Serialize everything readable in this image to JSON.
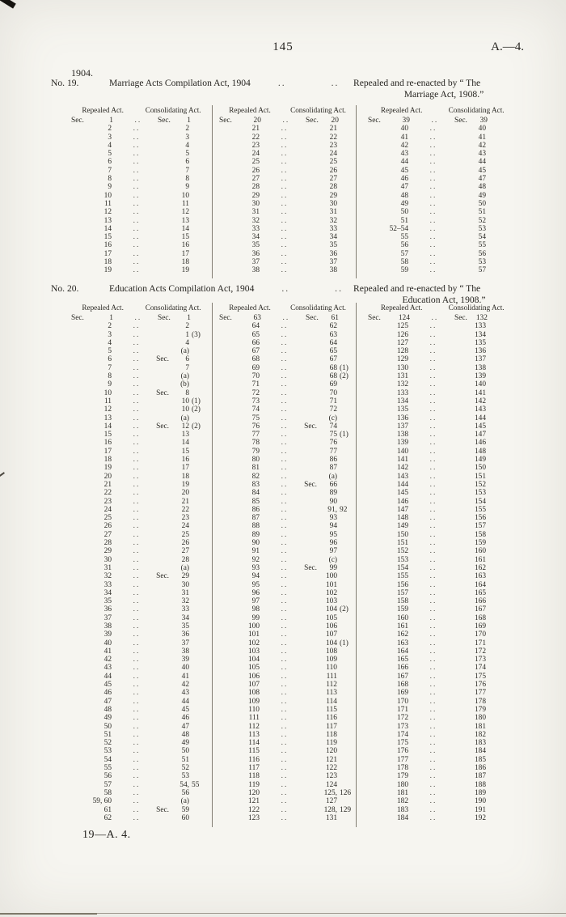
{
  "page": {
    "number": "145",
    "doc_ref": "A.—4.",
    "year_label": "1904.",
    "footer": "19—A. 4."
  },
  "table_headers": {
    "repealed": "Repealed Act.",
    "consolidating": "Consolidating Act."
  },
  "row_dots": "..",
  "acts": [
    {
      "no_label": "No. 19.",
      "title": "Marriage Acts Compilation Act, 1904",
      "dots": "..",
      "note_line1": "Repealed and re-enacted by “ The",
      "note_line2": "Marriage Act, 1908.”",
      "columns": [
        [
          [
            "Sec. 1",
            "Sec. 1"
          ],
          [
            "2",
            "2"
          ],
          [
            "3",
            "3"
          ],
          [
            "4",
            "4"
          ],
          [
            "5",
            "5"
          ],
          [
            "6",
            "6"
          ],
          [
            "7",
            "7"
          ],
          [
            "8",
            "8"
          ],
          [
            "9",
            "9"
          ],
          [
            "10",
            "10"
          ],
          [
            "11",
            "11"
          ],
          [
            "12",
            "12"
          ],
          [
            "13",
            "13"
          ],
          [
            "14",
            "14"
          ],
          [
            "15",
            "15"
          ],
          [
            "16",
            "16"
          ],
          [
            "17",
            "17"
          ],
          [
            "18",
            "18"
          ],
          [
            "19",
            "19"
          ]
        ],
        [
          [
            "Sec. 20",
            "Sec. 20"
          ],
          [
            "21",
            "21"
          ],
          [
            "22",
            "22"
          ],
          [
            "23",
            "23"
          ],
          [
            "24",
            "24"
          ],
          [
            "25",
            "25"
          ],
          [
            "26",
            "26"
          ],
          [
            "27",
            "27"
          ],
          [
            "28",
            "28"
          ],
          [
            "29",
            "29"
          ],
          [
            "30",
            "30"
          ],
          [
            "31",
            "31"
          ],
          [
            "32",
            "32"
          ],
          [
            "33",
            "33"
          ],
          [
            "34",
            "34"
          ],
          [
            "35",
            "35"
          ],
          [
            "36",
            "36"
          ],
          [
            "37",
            "37"
          ],
          [
            "38",
            "38"
          ]
        ],
        [
          [
            "Sec. 39",
            "Sec. 39"
          ],
          [
            "40",
            "40"
          ],
          [
            "41",
            "41"
          ],
          [
            "42",
            "42"
          ],
          [
            "43",
            "43"
          ],
          [
            "44",
            "44"
          ],
          [
            "45",
            "45"
          ],
          [
            "46",
            "47"
          ],
          [
            "47",
            "48"
          ],
          [
            "48",
            "49"
          ],
          [
            "49",
            "50"
          ],
          [
            "50",
            "51"
          ],
          [
            "51",
            "52"
          ],
          [
            "52–54",
            "53"
          ],
          [
            "55",
            "54"
          ],
          [
            "56",
            "55"
          ],
          [
            "57",
            "56"
          ],
          [
            "58",
            "53"
          ],
          [
            "59",
            "57"
          ]
        ]
      ]
    },
    {
      "no_label": "No. 20.",
      "title": "Education Acts Compilation Act, 1904",
      "dots": "..",
      "note_line1": "Repealed and re-enacted by “ The",
      "note_line2": "Education Act, 1908.”",
      "columns": [
        [
          [
            "Sec. 1",
            "Sec. 1"
          ],
          [
            "2",
            "2"
          ],
          [
            "3",
            "1 (3)"
          ],
          [
            "4",
            "4"
          ],
          [
            "5",
            "(a)"
          ],
          [
            "6",
            "Sec. 6"
          ],
          [
            "7",
            "7"
          ],
          [
            "8",
            "(a)"
          ],
          [
            "9",
            "(b)"
          ],
          [
            "10",
            "Sec. 8"
          ],
          [
            "11",
            "10 (1)"
          ],
          [
            "12",
            "10 (2)"
          ],
          [
            "13",
            "(a)"
          ],
          [
            "14",
            "Sec. 12 (2)"
          ],
          [
            "15",
            "13"
          ],
          [
            "16",
            "14"
          ],
          [
            "17",
            "15"
          ],
          [
            "18",
            "16"
          ],
          [
            "19",
            "17"
          ],
          [
            "20",
            "18"
          ],
          [
            "21",
            "19"
          ],
          [
            "22",
            "20"
          ],
          [
            "23",
            "21"
          ],
          [
            "24",
            "22"
          ],
          [
            "25",
            "23"
          ],
          [
            "26",
            "24"
          ],
          [
            "27",
            "25"
          ],
          [
            "28",
            "26"
          ],
          [
            "29",
            "27"
          ],
          [
            "30",
            "28"
          ],
          [
            "31",
            "(a)"
          ],
          [
            "32",
            "Sec. 29"
          ],
          [
            "33",
            "30"
          ],
          [
            "34",
            "31"
          ],
          [
            "35",
            "32"
          ],
          [
            "36",
            "33"
          ],
          [
            "37",
            "34"
          ],
          [
            "38",
            "35"
          ],
          [
            "39",
            "36"
          ],
          [
            "40",
            "37"
          ],
          [
            "41",
            "38"
          ],
          [
            "42",
            "39"
          ],
          [
            "43",
            "40"
          ],
          [
            "44",
            "41"
          ],
          [
            "45",
            "42"
          ],
          [
            "46",
            "43"
          ],
          [
            "47",
            "44"
          ],
          [
            "48",
            "45"
          ],
          [
            "49",
            "46"
          ],
          [
            "50",
            "47"
          ],
          [
            "51",
            "48"
          ],
          [
            "52",
            "49"
          ],
          [
            "53",
            "50"
          ],
          [
            "54",
            "51"
          ],
          [
            "55",
            "52"
          ],
          [
            "56",
            "53"
          ],
          [
            "57",
            "54, 55"
          ],
          [
            "58",
            "56"
          ],
          [
            "59, 60",
            "(a)"
          ],
          [
            "61",
            "Sec. 59"
          ],
          [
            "62",
            "60"
          ]
        ],
        [
          [
            "Sec. 63",
            "Sec. 61"
          ],
          [
            "64",
            "62"
          ],
          [
            "65",
            "63"
          ],
          [
            "66",
            "64"
          ],
          [
            "67",
            "65"
          ],
          [
            "68",
            "67"
          ],
          [
            "69",
            "68 (1)"
          ],
          [
            "70",
            "68 (2)"
          ],
          [
            "71",
            "69"
          ],
          [
            "72",
            "70"
          ],
          [
            "73",
            "71"
          ],
          [
            "74",
            "72"
          ],
          [
            "75",
            "(c)"
          ],
          [
            "76",
            "Sec. 74"
          ],
          [
            "77",
            "75 (1)"
          ],
          [
            "78",
            "76"
          ],
          [
            "79",
            "77"
          ],
          [
            "80",
            "86"
          ],
          [
            "81",
            "87"
          ],
          [
            "82",
            "(a)"
          ],
          [
            "83",
            "Sec. 66"
          ],
          [
            "84",
            "89"
          ],
          [
            "85",
            "90"
          ],
          [
            "86",
            "91, 92"
          ],
          [
            "87",
            "93"
          ],
          [
            "88",
            "94"
          ],
          [
            "89",
            "95"
          ],
          [
            "90",
            "96"
          ],
          [
            "91",
            "97"
          ],
          [
            "92",
            "(c)"
          ],
          [
            "93",
            "Sec. 99"
          ],
          [
            "94",
            "100"
          ],
          [
            "95",
            "101"
          ],
          [
            "96",
            "102"
          ],
          [
            "97",
            "103"
          ],
          [
            "98",
            "104 (2)"
          ],
          [
            "99",
            "105"
          ],
          [
            "100",
            "106"
          ],
          [
            "101",
            "107"
          ],
          [
            "102",
            "104 (1)"
          ],
          [
            "103",
            "108"
          ],
          [
            "104",
            "109"
          ],
          [
            "105",
            "110"
          ],
          [
            "106",
            "111"
          ],
          [
            "107",
            "112"
          ],
          [
            "108",
            "113"
          ],
          [
            "109",
            "114"
          ],
          [
            "110",
            "115"
          ],
          [
            "111",
            "116"
          ],
          [
            "112",
            "117"
          ],
          [
            "113",
            "118"
          ],
          [
            "114",
            "119"
          ],
          [
            "115",
            "120"
          ],
          [
            "116",
            "121"
          ],
          [
            "117",
            "122"
          ],
          [
            "118",
            "123"
          ],
          [
            "119",
            "124"
          ],
          [
            "120",
            "125, 126"
          ],
          [
            "121",
            "127"
          ],
          [
            "122",
            "128, 129"
          ],
          [
            "123",
            "131"
          ]
        ],
        [
          [
            "Sec. 124",
            "Sec. 132"
          ],
          [
            "125",
            "133"
          ],
          [
            "126",
            "134"
          ],
          [
            "127",
            "135"
          ],
          [
            "128",
            "136"
          ],
          [
            "129",
            "137"
          ],
          [
            "130",
            "138"
          ],
          [
            "131",
            "139"
          ],
          [
            "132",
            "140"
          ],
          [
            "133",
            "141"
          ],
          [
            "134",
            "142"
          ],
          [
            "135",
            "143"
          ],
          [
            "136",
            "144"
          ],
          [
            "137",
            "145"
          ],
          [
            "138",
            "147"
          ],
          [
            "139",
            "146"
          ],
          [
            "140",
            "148"
          ],
          [
            "141",
            "149"
          ],
          [
            "142",
            "150"
          ],
          [
            "143",
            "151"
          ],
          [
            "144",
            "152"
          ],
          [
            "145",
            "153"
          ],
          [
            "146",
            "154"
          ],
          [
            "147",
            "155"
          ],
          [
            "148",
            "156"
          ],
          [
            "149",
            "157"
          ],
          [
            "150",
            "158"
          ],
          [
            "151",
            "159"
          ],
          [
            "152",
            "160"
          ],
          [
            "153",
            "161"
          ],
          [
            "154",
            "162"
          ],
          [
            "155",
            "163"
          ],
          [
            "156",
            "164"
          ],
          [
            "157",
            "165"
          ],
          [
            "158",
            "166"
          ],
          [
            "159",
            "167"
          ],
          [
            "160",
            "168"
          ],
          [
            "161",
            "169"
          ],
          [
            "162",
            "170"
          ],
          [
            "163",
            "171"
          ],
          [
            "164",
            "172"
          ],
          [
            "165",
            "173"
          ],
          [
            "166",
            "174"
          ],
          [
            "167",
            "175"
          ],
          [
            "168",
            "176"
          ],
          [
            "169",
            "177"
          ],
          [
            "170",
            "178"
          ],
          [
            "171",
            "179"
          ],
          [
            "172",
            "180"
          ],
          [
            "173",
            "181"
          ],
          [
            "174",
            "182"
          ],
          [
            "175",
            "183"
          ],
          [
            "176",
            "184"
          ],
          [
            "177",
            "185"
          ],
          [
            "178",
            "186"
          ],
          [
            "179",
            "187"
          ],
          [
            "180",
            "188"
          ],
          [
            "181",
            "189"
          ],
          [
            "182",
            "190"
          ],
          [
            "183",
            "191"
          ],
          [
            "184",
            "192"
          ]
        ]
      ]
    }
  ]
}
